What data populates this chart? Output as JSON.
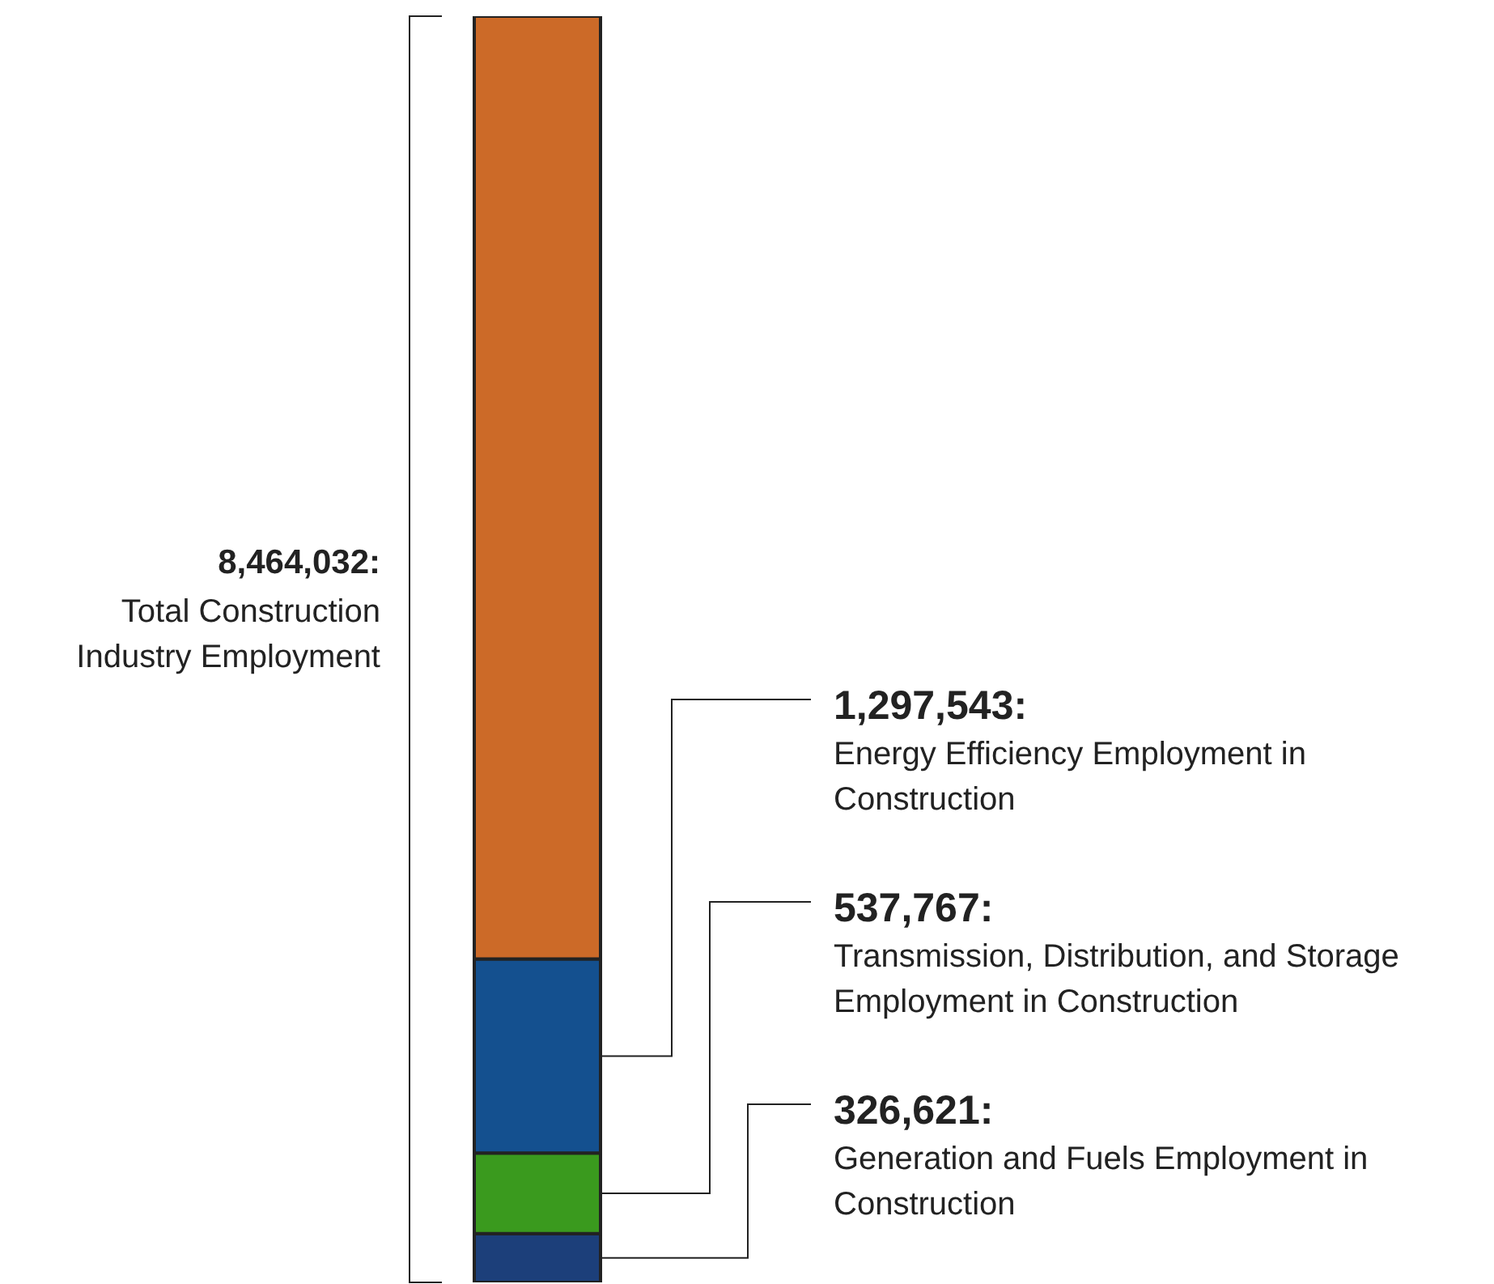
{
  "chart_data": {
    "type": "bar",
    "stacked": true,
    "categories": [
      null
    ],
    "ylim": [
      0,
      8464032
    ],
    "tick_labels": false,
    "series": [
      {
        "name": "Generation and Fuels Employment in Construction",
        "color": "#1c3f7a",
        "values": [
          326621
        ],
        "value_labels": [
          "326,621:"
        ]
      },
      {
        "name": "Transmission, Distribution, and Storage Employment in Construction",
        "color": "#3a9a1e",
        "values": [
          537767
        ],
        "value_labels": [
          "537,767:"
        ]
      },
      {
        "name": "Energy Efficiency Employment in Construction",
        "color": "#14508f",
        "values": [
          1297543
        ],
        "value_labels": [
          "1,297,543:"
        ]
      },
      {
        "color": "#cc6a28",
        "values": [
          6302101
        ]
      }
    ],
    "totals": [
      "8,464,032:"
    ],
    "annotations": [
      "Total Construction Industry Employment"
    ]
  }
}
